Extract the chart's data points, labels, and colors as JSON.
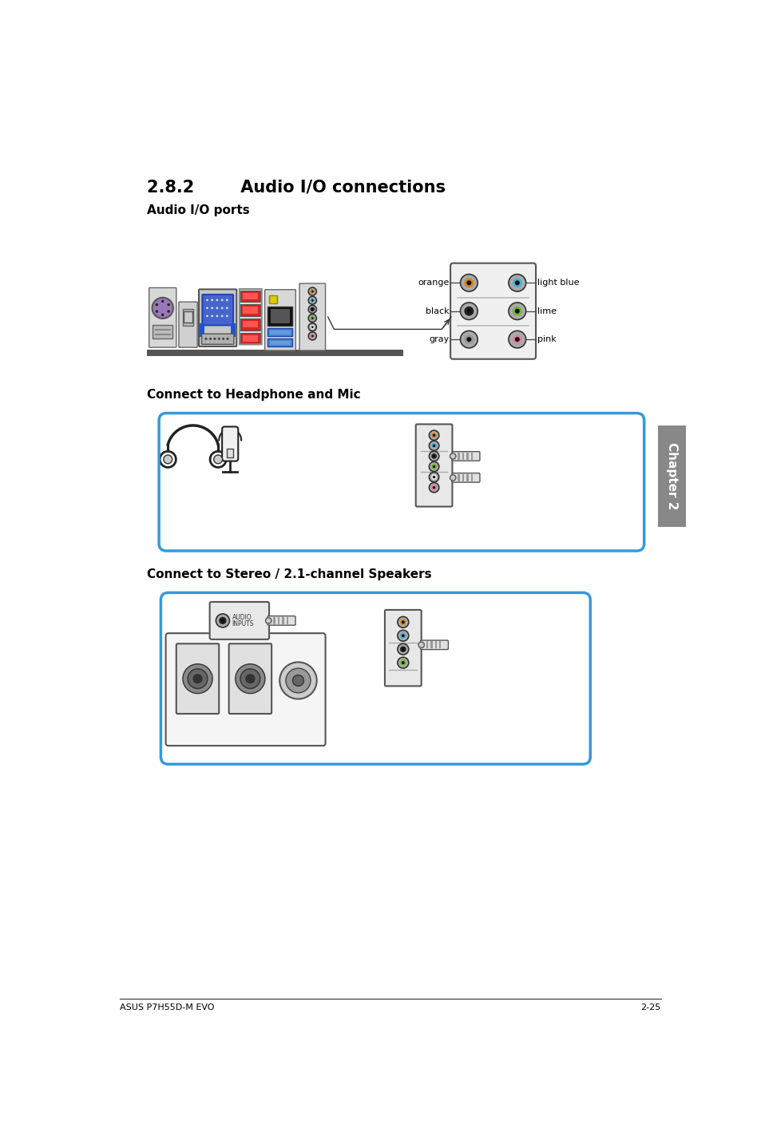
{
  "title": "2.8.2        Audio I/O connections",
  "subtitle1": "Audio I/O ports",
  "subtitle2": "Connect to Headphone and Mic",
  "subtitle3": "Connect to Stereo / 2.1-channel Speakers",
  "footer_left": "ASUS P7H55D-M EVO",
  "footer_right": "2-25",
  "chapter_tab": "Chapter 2",
  "bg_color": "#ffffff",
  "text_color": "#000000",
  "blue_line_color": "#3399dd",
  "connector_colors": {
    "orange": "#d4861a",
    "light_blue": "#4ab0d8",
    "black": "#222222",
    "lime": "#72b832",
    "gray": "#999999",
    "pink": "#e080a0",
    "white": "#f0f0f0"
  }
}
